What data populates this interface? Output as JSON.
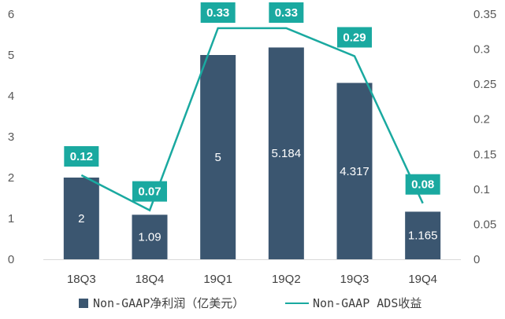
{
  "chart_data": {
    "type": "bar",
    "categories": [
      "18Q3",
      "18Q4",
      "19Q1",
      "19Q2",
      "19Q3",
      "19Q4"
    ],
    "series": [
      {
        "name": "Non-GAAP净利润（亿美元）",
        "type": "bar",
        "axis": "left",
        "values": [
          2,
          1.09,
          5,
          5.184,
          4.317,
          1.165
        ],
        "labels": [
          "2",
          "1.09",
          "5",
          "5.184",
          "4.317",
          "1.165"
        ]
      },
      {
        "name": "Non-GAAP ADS收益",
        "type": "line",
        "axis": "right",
        "values": [
          0.12,
          0.07,
          0.33,
          0.33,
          0.29,
          0.08
        ],
        "labels": [
          "0.12",
          "0.07",
          "0.33",
          "0.33",
          "0.29",
          "0.08"
        ]
      }
    ],
    "y_left": {
      "ylim": [
        0,
        6
      ],
      "ticks": [
        "0",
        "1",
        "2",
        "3",
        "4",
        "5",
        "6"
      ]
    },
    "y_right": {
      "ylim": [
        0,
        0.35
      ],
      "ticks": [
        "0",
        "0.05",
        "0.1",
        "0.15",
        "0.2",
        "0.25",
        "0.3",
        "0.35"
      ]
    },
    "legend_position": "bottom",
    "colors": {
      "bar": "#3b5670",
      "line": "#1aa9a0",
      "label_box": "#1aa9a0"
    },
    "grid": false
  }
}
